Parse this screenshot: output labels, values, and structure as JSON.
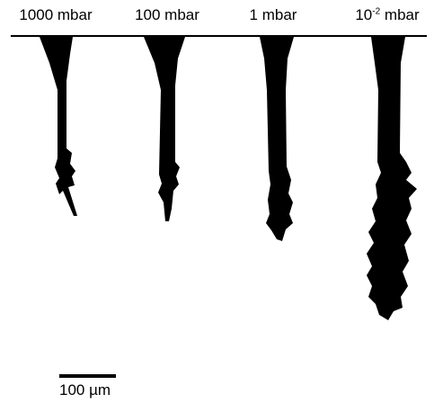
{
  "labels": [
    {
      "text": "1000 mbar"
    },
    {
      "text": "100 mbar"
    },
    {
      "text": "1 mbar"
    },
    {
      "base": "10",
      "exponent": "-2",
      "unit": "mbar"
    }
  ],
  "scale_bar": {
    "label": "100 µm"
  }
}
